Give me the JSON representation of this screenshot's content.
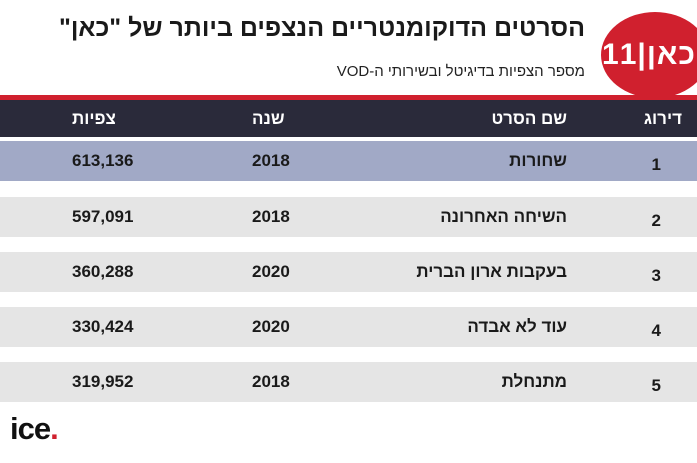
{
  "title": "הסרטים הדוקומנטריים הנצפים ביותר של \"כאן\"",
  "subtitle": "מספר הצפיות בדיגיטל ובשירותי ה-VOD",
  "logo_text": "כאן|11",
  "columns": {
    "rank": "דירוג",
    "title": "שם הסרט",
    "year": "שנה",
    "views": "צפיות"
  },
  "rows": [
    {
      "rank": "1",
      "title": "שחורות",
      "year": "2018",
      "views": "613,136"
    },
    {
      "rank": "2",
      "title": "השיחה האחרונה",
      "year": "2018",
      "views": "597,091"
    },
    {
      "rank": "3",
      "title": "בעקבות ארון הברית",
      "year": "2020",
      "views": "360,288"
    },
    {
      "rank": "4",
      "title": "עוד לא אבדה",
      "year": "2020",
      "views": "330,424"
    },
    {
      "rank": "5",
      "title": "מתנחלת",
      "year": "2018",
      "views": "319,952"
    }
  ],
  "footer_logo": {
    "text": "ice",
    "dot": "."
  },
  "colors": {
    "brand_red": "#d0202e",
    "header_bg": "#2a2a3a",
    "highlight_row": "#a1a9c6",
    "stripe_row": "#e5e5e5"
  }
}
